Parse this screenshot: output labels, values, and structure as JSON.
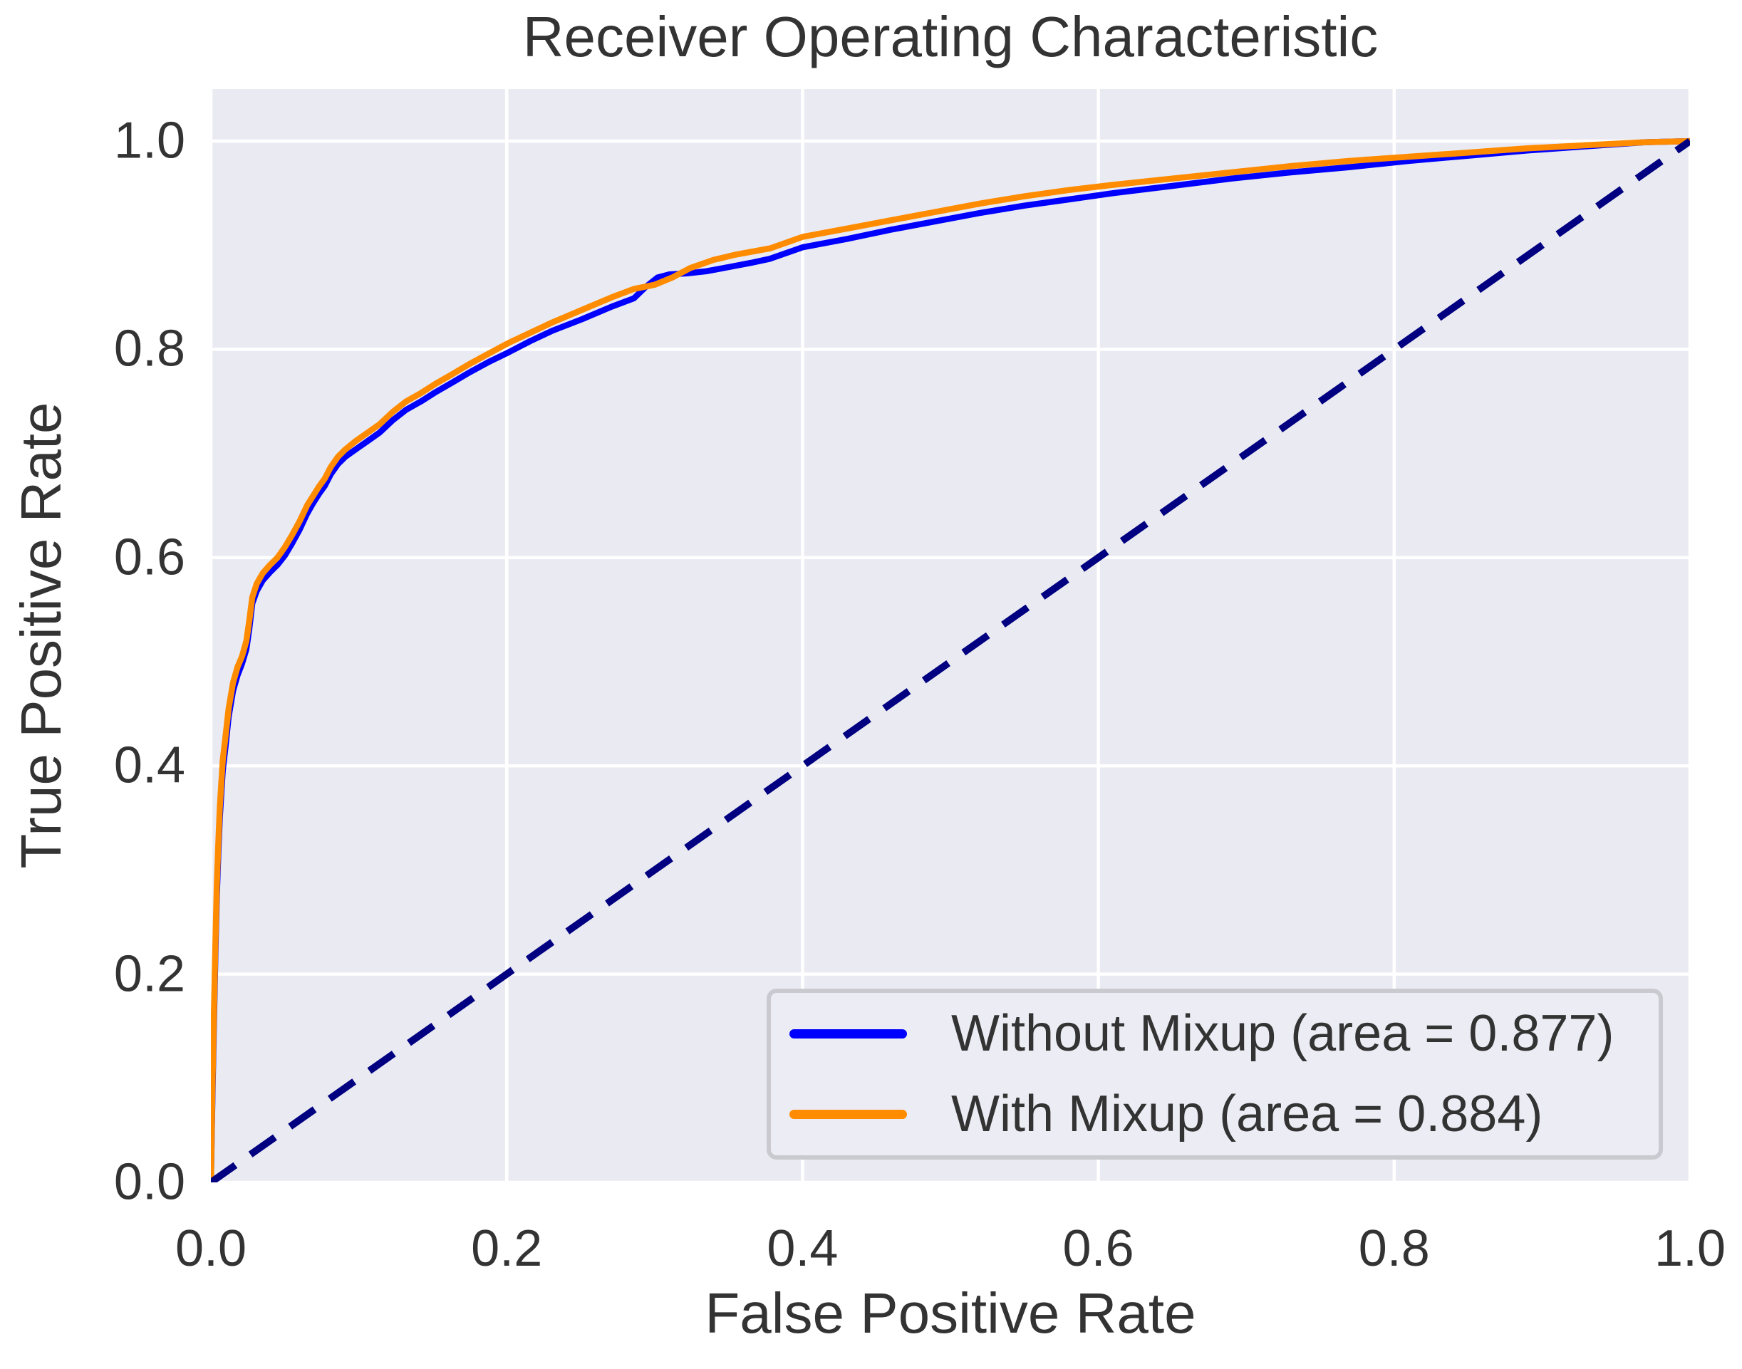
{
  "figure": {
    "title": "Receiver Operating Characteristic"
  },
  "axes": {
    "xlabel": "False Positive Rate",
    "ylabel": "True Positive Rate",
    "xlim": [
      0.0,
      1.0
    ],
    "ylim": [
      0.0,
      1.05
    ],
    "grid": true,
    "x_ticks": [
      {
        "value": 0.0,
        "label": "0.0"
      },
      {
        "value": 0.2,
        "label": "0.2"
      },
      {
        "value": 0.4,
        "label": "0.4"
      },
      {
        "value": 0.6,
        "label": "0.6"
      },
      {
        "value": 0.8,
        "label": "0.8"
      },
      {
        "value": 1.0,
        "label": "1.0"
      }
    ],
    "y_ticks": [
      {
        "value": 0.0,
        "label": "0.0"
      },
      {
        "value": 0.2,
        "label": "0.2"
      },
      {
        "value": 0.4,
        "label": "0.4"
      },
      {
        "value": 0.6,
        "label": "0.6"
      },
      {
        "value": 0.8,
        "label": "0.8"
      },
      {
        "value": 1.0,
        "label": "1.0"
      }
    ]
  },
  "legend": {
    "position": "lower right",
    "items": [
      {
        "label": "Without Mixup (area = 0.877)",
        "color": "#0000FF"
      },
      {
        "label": "With Mixup (area = 0.884)",
        "color": "#FF8C00"
      }
    ]
  },
  "colors": {
    "figure_bg": "#FFFFFF",
    "axes_bg": "#EAEAF2",
    "grid": "#FFFFFF",
    "text": "#333333",
    "without_mixup": "#0000FF",
    "with_mixup": "#FF8C00",
    "chance": "#000080",
    "legend_bg": "#ECECF4",
    "legend_border": "#C9C9CF"
  },
  "chart_data": {
    "type": "line",
    "title": "Receiver Operating Characteristic",
    "xlabel": "False Positive Rate",
    "ylabel": "True Positive Rate",
    "xlim": [
      0.0,
      1.0
    ],
    "ylim": [
      0.0,
      1.05
    ],
    "grid": true,
    "legend_position": "lower right",
    "series": [
      {
        "name": "Without Mixup",
        "area": 0.877,
        "color": "#0000FF",
        "style": "solid",
        "points": [
          [
            0,
            0
          ],
          [
            0.001,
            0.08
          ],
          [
            0.002,
            0.15
          ],
          [
            0.003,
            0.215
          ],
          [
            0.004,
            0.275
          ],
          [
            0.005,
            0.315
          ],
          [
            0.006,
            0.35
          ],
          [
            0.008,
            0.395
          ],
          [
            0.01,
            0.42
          ],
          [
            0.012,
            0.447
          ],
          [
            0.015,
            0.472
          ],
          [
            0.018,
            0.487
          ],
          [
            0.021,
            0.498
          ],
          [
            0.024,
            0.512
          ],
          [
            0.026,
            0.532
          ],
          [
            0.028,
            0.556
          ],
          [
            0.031,
            0.568
          ],
          [
            0.035,
            0.578
          ],
          [
            0.04,
            0.586
          ],
          [
            0.045,
            0.593
          ],
          [
            0.05,
            0.602
          ],
          [
            0.055,
            0.614
          ],
          [
            0.06,
            0.627
          ],
          [
            0.065,
            0.642
          ],
          [
            0.069,
            0.652
          ],
          [
            0.073,
            0.661
          ],
          [
            0.077,
            0.669
          ],
          [
            0.081,
            0.68
          ],
          [
            0.086,
            0.69
          ],
          [
            0.091,
            0.697
          ],
          [
            0.098,
            0.704
          ],
          [
            0.106,
            0.712
          ],
          [
            0.114,
            0.72
          ],
          [
            0.123,
            0.732
          ],
          [
            0.132,
            0.742
          ],
          [
            0.142,
            0.75
          ],
          [
            0.152,
            0.759
          ],
          [
            0.163,
            0.768
          ],
          [
            0.175,
            0.778
          ],
          [
            0.188,
            0.788
          ],
          [
            0.201,
            0.797
          ],
          [
            0.216,
            0.808
          ],
          [
            0.231,
            0.818
          ],
          [
            0.251,
            0.829
          ],
          [
            0.271,
            0.841
          ],
          [
            0.286,
            0.849
          ],
          [
            0.294,
            0.86
          ],
          [
            0.302,
            0.869
          ],
          [
            0.31,
            0.872
          ],
          [
            0.322,
            0.873
          ],
          [
            0.335,
            0.875
          ],
          [
            0.35,
            0.879
          ],
          [
            0.365,
            0.883
          ],
          [
            0.378,
            0.887
          ],
          [
            0.4,
            0.898
          ],
          [
            0.43,
            0.906
          ],
          [
            0.46,
            0.915
          ],
          [
            0.49,
            0.923
          ],
          [
            0.52,
            0.931
          ],
          [
            0.55,
            0.938
          ],
          [
            0.58,
            0.944
          ],
          [
            0.61,
            0.95
          ],
          [
            0.65,
            0.957
          ],
          [
            0.69,
            0.964
          ],
          [
            0.73,
            0.97
          ],
          [
            0.77,
            0.975
          ],
          [
            0.81,
            0.981
          ],
          [
            0.85,
            0.986
          ],
          [
            0.89,
            0.991
          ],
          [
            0.93,
            0.995
          ],
          [
            0.97,
            0.999
          ],
          [
            1,
            1
          ]
        ]
      },
      {
        "name": "With Mixup",
        "area": 0.884,
        "color": "#FF8C00",
        "style": "solid",
        "points": [
          [
            0,
            0
          ],
          [
            0.001,
            0.09
          ],
          [
            0.002,
            0.16
          ],
          [
            0.003,
            0.225
          ],
          [
            0.004,
            0.285
          ],
          [
            0.005,
            0.325
          ],
          [
            0.006,
            0.36
          ],
          [
            0.008,
            0.405
          ],
          [
            0.01,
            0.43
          ],
          [
            0.012,
            0.455
          ],
          [
            0.015,
            0.48
          ],
          [
            0.018,
            0.495
          ],
          [
            0.021,
            0.505
          ],
          [
            0.024,
            0.52
          ],
          [
            0.026,
            0.54
          ],
          [
            0.028,
            0.562
          ],
          [
            0.031,
            0.575
          ],
          [
            0.035,
            0.585
          ],
          [
            0.04,
            0.593
          ],
          [
            0.045,
            0.6
          ],
          [
            0.05,
            0.61
          ],
          [
            0.055,
            0.622
          ],
          [
            0.06,
            0.635
          ],
          [
            0.065,
            0.65
          ],
          [
            0.069,
            0.659
          ],
          [
            0.073,
            0.668
          ],
          [
            0.077,
            0.676
          ],
          [
            0.081,
            0.687
          ],
          [
            0.086,
            0.697
          ],
          [
            0.091,
            0.704
          ],
          [
            0.098,
            0.712
          ],
          [
            0.106,
            0.72
          ],
          [
            0.114,
            0.728
          ],
          [
            0.123,
            0.74
          ],
          [
            0.132,
            0.75
          ],
          [
            0.142,
            0.758
          ],
          [
            0.152,
            0.767
          ],
          [
            0.163,
            0.776
          ],
          [
            0.175,
            0.786
          ],
          [
            0.188,
            0.796
          ],
          [
            0.201,
            0.806
          ],
          [
            0.216,
            0.816
          ],
          [
            0.231,
            0.826
          ],
          [
            0.251,
            0.838
          ],
          [
            0.271,
            0.85
          ],
          [
            0.286,
            0.858
          ],
          [
            0.3,
            0.862
          ],
          [
            0.312,
            0.869
          ],
          [
            0.324,
            0.878
          ],
          [
            0.34,
            0.886
          ],
          [
            0.355,
            0.891
          ],
          [
            0.378,
            0.897
          ],
          [
            0.4,
            0.908
          ],
          [
            0.43,
            0.916
          ],
          [
            0.46,
            0.924
          ],
          [
            0.49,
            0.932
          ],
          [
            0.52,
            0.94
          ],
          [
            0.55,
            0.947
          ],
          [
            0.58,
            0.953
          ],
          [
            0.61,
            0.958
          ],
          [
            0.65,
            0.964
          ],
          [
            0.69,
            0.97
          ],
          [
            0.73,
            0.976
          ],
          [
            0.77,
            0.981
          ],
          [
            0.81,
            0.985
          ],
          [
            0.85,
            0.989
          ],
          [
            0.89,
            0.993
          ],
          [
            0.93,
            0.996
          ],
          [
            0.97,
            0.999
          ],
          [
            1,
            1
          ]
        ]
      },
      {
        "name": "Chance",
        "color": "#000080",
        "style": "dashed",
        "points": [
          [
            0,
            0
          ],
          [
            1,
            1
          ]
        ]
      }
    ]
  }
}
